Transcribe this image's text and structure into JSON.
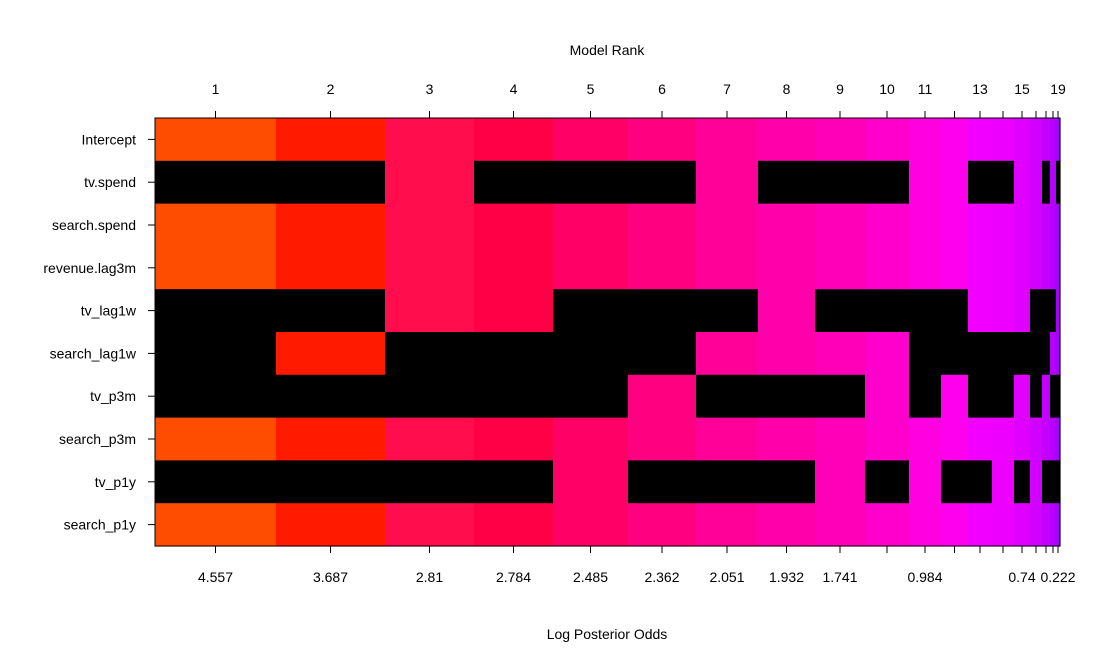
{
  "chart_data": {
    "type": "heatmap",
    "title": "",
    "top_axis_label": "Model Rank",
    "xlabel": "Log Posterior Odds",
    "top_tick_labels": [
      "1",
      "2",
      "3",
      "4",
      "5",
      "6",
      "7",
      "8",
      "9",
      "10",
      "11",
      "13",
      "15",
      "19"
    ],
    "bottom_tick_labels": [
      "4.557",
      "3.687",
      "2.81",
      "2.784",
      "2.485",
      "2.362",
      "2.051",
      "1.932",
      "1.741",
      "0.984",
      "0.74",
      "0.222"
    ],
    "variables": [
      "Intercept",
      "tv.spend",
      "search.spend",
      "revenue.lag3m",
      "tv_lag1w",
      "search_lag1w",
      "tv_p3m",
      "search_p3m",
      "tv_p1y",
      "search_p1y"
    ],
    "models": [
      {
        "rank": 1,
        "color": "#ff4d00",
        "absent": [
          1,
          4,
          5,
          6,
          8
        ]
      },
      {
        "rank": 2,
        "color": "#ff1a00",
        "absent": [
          1,
          4,
          6,
          8
        ]
      },
      {
        "rank": 3,
        "color": "#ff0d4d",
        "absent": [
          5,
          6,
          8
        ]
      },
      {
        "rank": 4,
        "color": "#ff0047",
        "absent": [
          1,
          5,
          6,
          8
        ]
      },
      {
        "rank": 5,
        "color": "#ff0066",
        "absent": [
          1,
          4,
          5,
          6
        ]
      },
      {
        "rank": 6,
        "color": "#ff0080",
        "absent": [
          1,
          4,
          5,
          8
        ]
      },
      {
        "rank": 7,
        "color": "#ff0099",
        "absent": [
          4,
          6,
          8
        ]
      },
      {
        "rank": 8,
        "color": "#ff00aa",
        "absent": [
          1,
          6,
          8
        ]
      },
      {
        "rank": 9,
        "color": "#ff00b8",
        "absent": [
          1,
          4,
          6
        ]
      },
      {
        "rank": 10,
        "color": "#ff00cc",
        "absent": [
          1,
          4,
          8
        ]
      },
      {
        "rank": 11,
        "color": "#ff00e0",
        "absent": [
          4,
          5,
          6
        ]
      },
      {
        "rank": 12,
        "color": "#ff00ee",
        "absent": [
          4,
          5,
          8
        ]
      },
      {
        "rank": 13,
        "color": "#f200ff",
        "absent": [
          1,
          5,
          6,
          8
        ]
      },
      {
        "rank": 14,
        "color": "#ee00ff",
        "absent": [
          1,
          5,
          6
        ]
      },
      {
        "rank": 15,
        "color": "#e000ff",
        "absent": [
          5,
          8
        ]
      },
      {
        "rank": 16,
        "color": "#d200ff",
        "absent": [
          4,
          5,
          6
        ]
      },
      {
        "rank": 17,
        "color": "#c400ff",
        "absent": [
          1,
          4,
          5,
          8
        ]
      },
      {
        "rank": 18,
        "color": "#b600ff",
        "absent": [
          4,
          6,
          8
        ]
      },
      {
        "rank": 19,
        "color": "#a600ff",
        "absent": [
          1,
          6,
          8
        ]
      }
    ],
    "absent_color": "#000000",
    "grid": false,
    "legend": "none"
  }
}
